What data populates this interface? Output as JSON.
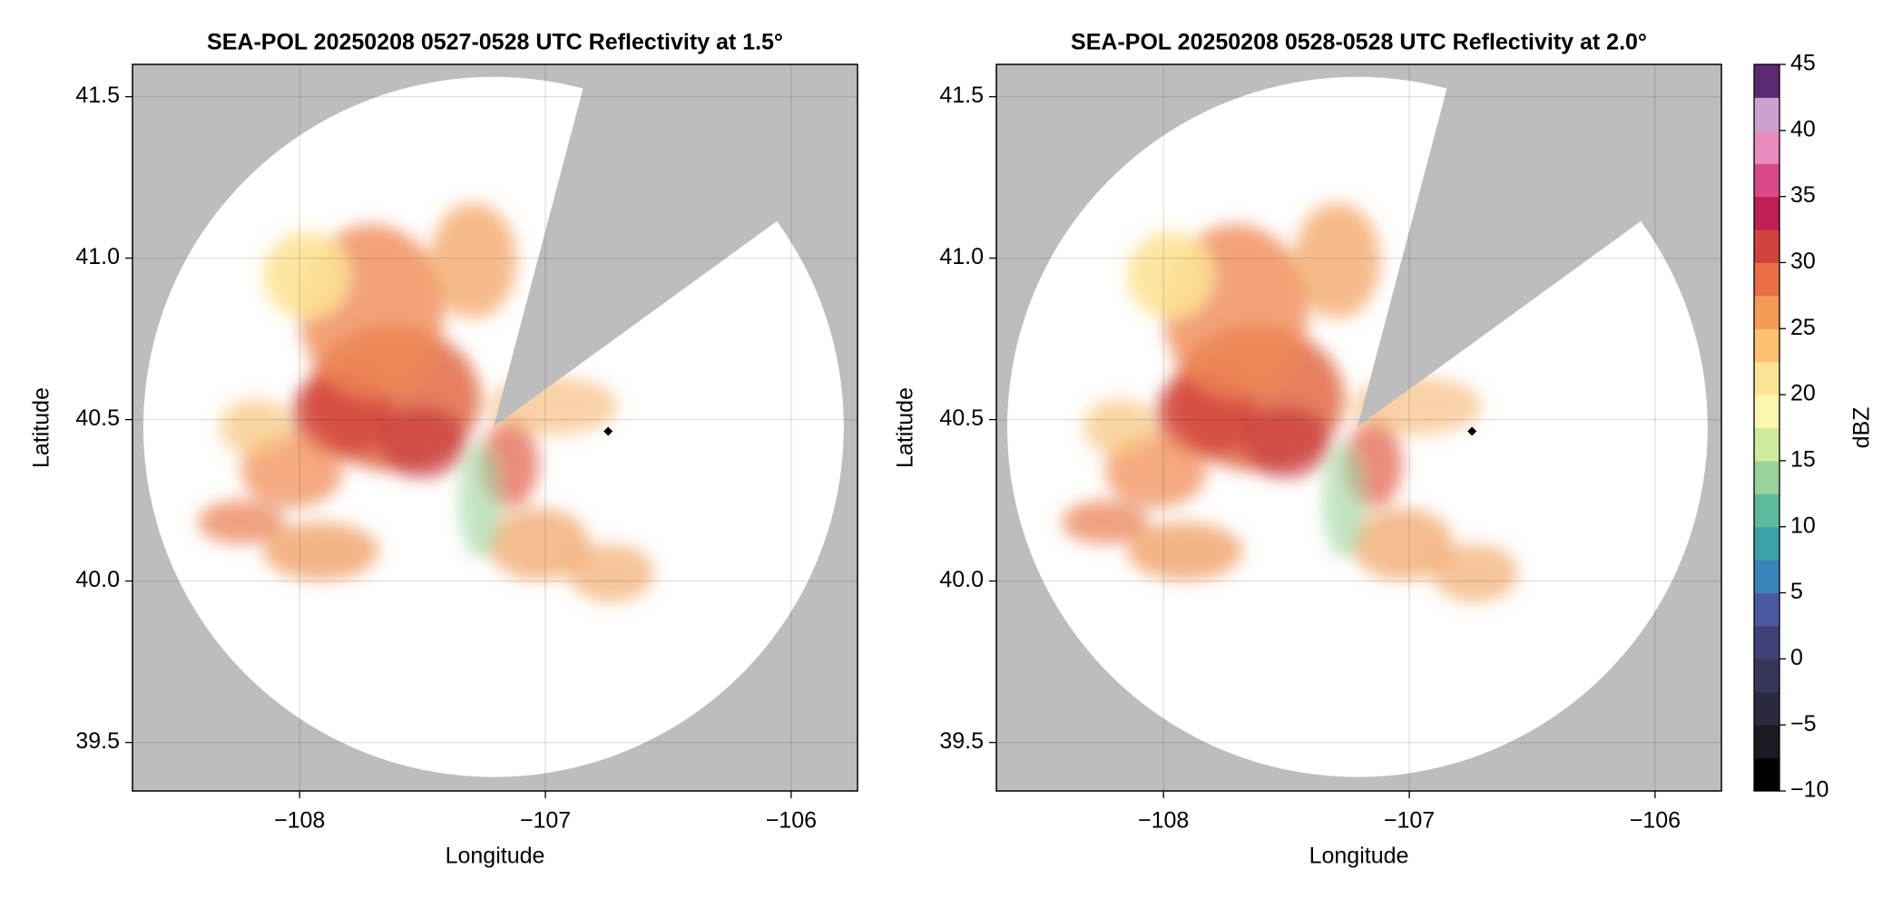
{
  "chart_data": [
    {
      "type": "radar-ppi",
      "title": "SEA-POL 20250208 0527-0528 UTC Reflectivity at 1.5°",
      "x_label": "Longitude",
      "y_label": "Latitude",
      "xlim": [
        -108.68,
        -105.73
      ],
      "ylim": [
        39.35,
        41.6
      ],
      "xticks": [
        {
          "value": -108,
          "label": "−108"
        },
        {
          "value": -107,
          "label": "−107"
        },
        {
          "value": -106,
          "label": "−106"
        }
      ],
      "yticks": [
        39.5,
        {
          "value": 40,
          "label": "40.0"
        },
        40.5,
        {
          "value": 41,
          "label": "41.0"
        },
        41.5
      ],
      "grid": true
    },
    {
      "type": "radar-ppi",
      "title": "SEA-POL 20250208 0528-0528 UTC Reflectivity at 2.0°",
      "x_label": "Longitude",
      "y_label": "Latitude",
      "xlim": [
        -108.68,
        -105.73
      ],
      "ylim": [
        39.35,
        41.6
      ],
      "xticks": [
        {
          "value": -108,
          "label": "−108"
        },
        {
          "value": -107,
          "label": "−107"
        },
        {
          "value": -106,
          "label": "−106"
        }
      ],
      "yticks": [
        39.5,
        {
          "value": 40,
          "label": "40.0"
        },
        40.5,
        {
          "value": 41,
          "label": "41.0"
        },
        41.5
      ],
      "grid": true,
      "colorbar": {
        "label": "dBZ",
        "lim": [
          -10,
          45
        ],
        "ticks": [
          {
            "value": -10,
            "label": "−10"
          },
          {
            "value": -5,
            "label": "−5"
          },
          0,
          5,
          10,
          15,
          20,
          25,
          30,
          35,
          40,
          45
        ],
        "colors": [
          "#000000",
          "#1a1a22",
          "#2a2a3c",
          "#363659",
          "#414179",
          "#4a5aa0",
          "#3b84b8",
          "#3aa2a8",
          "#5cbb9c",
          "#98d39c",
          "#d0eb9d",
          "#fbf8b0",
          "#fde396",
          "#fbc070",
          "#f59b58",
          "#e96d45",
          "#d2423f",
          "#c01f55",
          "#d94a8a",
          "#e88bbe",
          "#c9a2cf",
          "#5a2a72"
        ]
      }
    }
  ]
}
